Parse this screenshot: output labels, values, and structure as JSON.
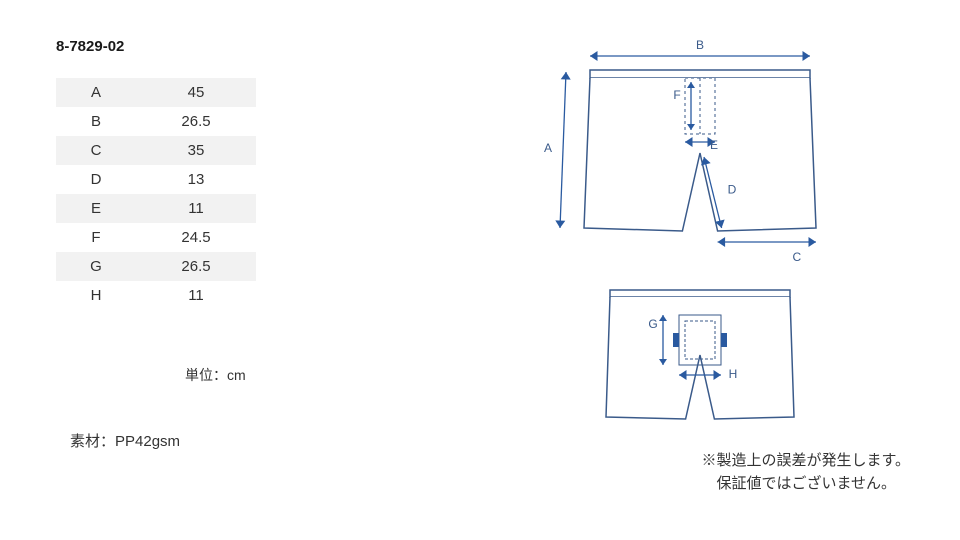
{
  "product_code": "8-7829-02",
  "table": {
    "rows": [
      {
        "label": "A",
        "value": "45"
      },
      {
        "label": "B",
        "value": "26.5"
      },
      {
        "label": "C",
        "value": "35"
      },
      {
        "label": "D",
        "value": "13"
      },
      {
        "label": "E",
        "value": "11"
      },
      {
        "label": "F",
        "value": "24.5"
      },
      {
        "label": "G",
        "value": "26.5"
      },
      {
        "label": "H",
        "value": "11"
      }
    ]
  },
  "unit_label": "単位：cm",
  "material_label": "素材：PP42gsm",
  "disclaimer_line1": "※製造上の誤差が発生します。",
  "disclaimer_line2": "　保証値ではございません。",
  "diagram": {
    "stroke_color": "#3a5a8a",
    "arrow_color": "#2a5aa0",
    "fill_color": "#ffffff",
    "dash_color": "#3a5a8a",
    "label_color": "#3a5a8a",
    "label_fontsize": 12,
    "stroke_width": 1.5,
    "arrow_width": 1.3,
    "top": {
      "labels": {
        "A": "A",
        "B": "B",
        "C": "C",
        "D": "D",
        "E": "E",
        "F": "F"
      }
    },
    "bottom": {
      "labels": {
        "G": "G",
        "H": "H"
      }
    }
  }
}
